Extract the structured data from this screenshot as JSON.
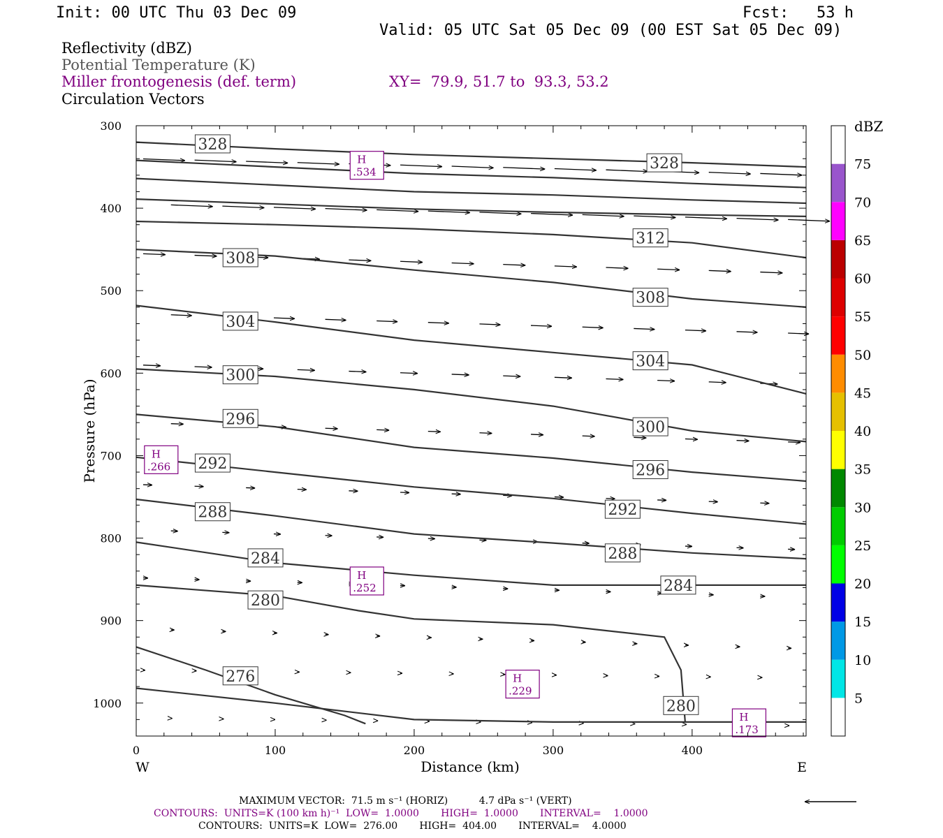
{
  "header": {
    "init": "Init: 00 UTC Thu 03 Dec 09",
    "fcst": "Fcst:   53 h",
    "valid": "Valid: 05 UTC Sat 05 Dec 09 (00 EST Sat 05 Dec 09)"
  },
  "fields": {
    "reflectivity": "Reflectivity (dBZ)",
    "theta": "Potential Temperature (K)",
    "miller": "Miller frontogenesis (def. term)",
    "xy": "XY=  79.9, 51.7 to  93.3, 53.2",
    "vectors": "Circulation Vectors"
  },
  "colors": {
    "theta": "#333333",
    "miller": "#800080",
    "reflectivity_scale": [
      "#ffffff",
      "#00e6e6",
      "#0099e6",
      "#0000e6",
      "#00ff00",
      "#00cc00",
      "#008800",
      "#ffff00",
      "#e6c000",
      "#ff8c00",
      "#ff0000",
      "#dd0000",
      "#bb0000",
      "#ff00ff",
      "#9955cc",
      "#ffffff"
    ]
  },
  "footer": {
    "vector_line": "MAXIMUM VECTOR:  71.5 m s⁻¹ (HORIZ)          4.7 dPa s⁻¹ (VERT)",
    "miller_line": "CONTOURS:  UNITS=K (100 km h)⁻¹  LOW=  1.0000       HIGH=  1.0000       INTERVAL=    1.0000",
    "theta_line": "CONTOURS:  UNITS=K  LOW=  276.00       HIGH=  404.00       INTERVAL=    4.0000"
  },
  "chart_data": {
    "type": "line",
    "xlabel": "Distance (km)",
    "ylabel": "Pressure (hPa)",
    "xlim": [
      0,
      482
    ],
    "ylim": [
      1040,
      300
    ],
    "y_scale": "linear, inverted",
    "x_ticks": [
      0,
      100,
      200,
      300,
      400
    ],
    "y_ticks": [
      300,
      400,
      500,
      600,
      700,
      800,
      900,
      1000
    ],
    "x_end_labels": {
      "left": "W",
      "right": "E"
    },
    "colorbar": {
      "label": "dBZ",
      "ticks": [
        5,
        10,
        15,
        20,
        25,
        30,
        35,
        40,
        45,
        50,
        55,
        60,
        65,
        70,
        75
      ]
    },
    "theta_contours": [
      {
        "label": "328",
        "x": [
          0,
          100,
          200,
          300,
          400,
          482
        ],
        "y": [
          320,
          328,
          335,
          340,
          345,
          350
        ]
      },
      {
        "label": "",
        "x": [
          0,
          100,
          200,
          300,
          400,
          482
        ],
        "y": [
          342,
          350,
          358,
          363,
          370,
          375
        ]
      },
      {
        "label": "",
        "x": [
          0,
          100,
          200,
          300,
          400,
          482
        ],
        "y": [
          364,
          372,
          380,
          384,
          390,
          394
        ]
      },
      {
        "label": "",
        "x": [
          0,
          100,
          200,
          300,
          400,
          482
        ],
        "y": [
          389,
          395,
          401,
          405,
          408,
          410
        ]
      },
      {
        "label": "312",
        "x": [
          0,
          100,
          200,
          300,
          400,
          482
        ],
        "y": [
          416,
          420,
          425,
          432,
          442,
          460
        ]
      },
      {
        "label": "308",
        "x": [
          0,
          100,
          200,
          300,
          400,
          482
        ],
        "y": [
          450,
          458,
          475,
          490,
          510,
          520
        ]
      },
      {
        "label": "304",
        "x": [
          0,
          100,
          200,
          300,
          400,
          482
        ],
        "y": [
          518,
          538,
          560,
          575,
          590,
          625
        ]
      },
      {
        "label": "300",
        "x": [
          0,
          100,
          200,
          300,
          400,
          482
        ],
        "y": [
          595,
          604,
          620,
          640,
          670,
          683
        ]
      },
      {
        "label": "296",
        "x": [
          0,
          100,
          200,
          300,
          400,
          482
        ],
        "y": [
          650,
          665,
          690,
          703,
          720,
          731
        ]
      },
      {
        "label": "292",
        "x": [
          0,
          100,
          200,
          300,
          400,
          482
        ],
        "y": [
          702,
          720,
          738,
          752,
          770,
          783
        ]
      },
      {
        "label": "288",
        "x": [
          0,
          100,
          200,
          300,
          400,
          482
        ],
        "y": [
          753,
          773,
          795,
          806,
          818,
          825
        ]
      },
      {
        "label": "284",
        "x": [
          0,
          100,
          200,
          300,
          400,
          482
        ],
        "y": [
          805,
          830,
          845,
          857,
          857,
          857
        ]
      },
      {
        "label": "280",
        "x": [
          0,
          100,
          160,
          200,
          300,
          380,
          392,
          395
        ],
        "y": [
          857,
          870,
          888,
          898,
          905,
          920,
          960,
          1023
        ]
      },
      {
        "label": "276",
        "x": [
          0,
          50,
          100,
          150,
          165
        ],
        "y": [
          932,
          960,
          990,
          1015,
          1025
        ]
      },
      {
        "label": "",
        "x": [
          0,
          100,
          200,
          300,
          400,
          482
        ],
        "y": [
          982,
          1000,
          1020,
          1023,
          1023,
          1023
        ]
      }
    ],
    "miller_highs": [
      {
        "label": "H",
        "value": ".534",
        "x": 166,
        "y": 348
      },
      {
        "label": "H",
        "value": ".266",
        "x": 18,
        "y": 705
      },
      {
        "label": "H",
        "value": ".252",
        "x": 166,
        "y": 852
      },
      {
        "label": "H",
        "value": ".229",
        "x": 278,
        "y": 977
      },
      {
        "label": "H",
        "value": ".173",
        "x": 441,
        "y": 1024
      }
    ]
  }
}
